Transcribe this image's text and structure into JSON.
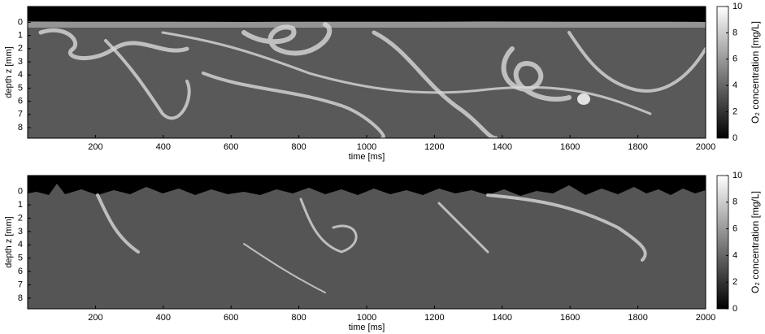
{
  "chart_data": [
    {
      "type": "heatmap",
      "xlabel": "time [ms]",
      "ylabel": "depth z [mm]",
      "xlim": [
        0,
        2000
      ],
      "xticks": [
        200,
        400,
        600,
        800,
        1000,
        1200,
        1400,
        1600,
        1800,
        2000
      ],
      "ylim": [
        -1.2,
        8.8
      ],
      "yticks": [
        0,
        1,
        2,
        3,
        4,
        5,
        6,
        7,
        8
      ],
      "y_inverted": true,
      "colormap": "gray",
      "colorbar": {
        "label": "O₂ concentration [mg/L]",
        "lim": [
          0,
          10
        ],
        "ticks": [
          0,
          2,
          4,
          6,
          8,
          10
        ]
      }
    },
    {
      "type": "heatmap",
      "xlabel": "time [ms]",
      "ylabel": "depth z [mm]",
      "xlim": [
        0,
        2000
      ],
      "xticks": [
        200,
        400,
        600,
        800,
        1000,
        1200,
        1400,
        1600,
        1800,
        2000
      ],
      "ylim": [
        -1.2,
        8.8
      ],
      "yticks": [
        0,
        1,
        2,
        3,
        4,
        5,
        6,
        7,
        8
      ],
      "y_inverted": true,
      "colormap": "gray",
      "colorbar": {
        "label": "O₂ concentration [mg/L]",
        "lim": [
          0,
          10
        ],
        "ticks": [
          0,
          2,
          4,
          6,
          8,
          10
        ]
      }
    }
  ]
}
